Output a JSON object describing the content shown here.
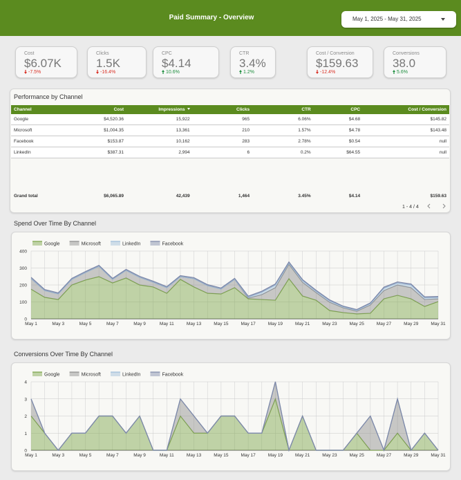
{
  "header": {
    "title": "Paid Summary - Overview",
    "date_range": "May 1, 2025 - May 31, 2025"
  },
  "kpis": [
    {
      "label": "Cost",
      "value": "$6.07K",
      "delta": "-7.5%",
      "direction": "down"
    },
    {
      "label": "Clicks",
      "value": "1.5K",
      "delta": "-16.4%",
      "direction": "down"
    },
    {
      "label": "CPC",
      "value": "$4.14",
      "delta": "10.6%",
      "direction": "up"
    },
    {
      "label": "CTR",
      "value": "3.4%",
      "delta": "1.2%",
      "direction": "up"
    },
    {
      "label": "Cost / Conversion",
      "value": "$159.63",
      "delta": "-12.4%",
      "direction": "down"
    },
    {
      "label": "Conversions",
      "value": "38.0",
      "delta": "5.6%",
      "direction": "up"
    }
  ],
  "table": {
    "title": "Performance by Channel",
    "columns": [
      "Channel",
      "Cost",
      "Impressions",
      "Clicks",
      "CTR",
      "CPC",
      "Cost / Conversion"
    ],
    "rows": [
      [
        "Google",
        "$4,520.36",
        "15,922",
        "965",
        "6.06%",
        "$4.68",
        "$145.82"
      ],
      [
        "Microsoft",
        "$1,004.35",
        "13,361",
        "210",
        "1.57%",
        "$4.78",
        "$143.48"
      ],
      [
        "Facebook",
        "$153.87",
        "10,162",
        "283",
        "2.78%",
        "$0.54",
        "null"
      ],
      [
        "LinkedIn",
        "$387.31",
        "2,994",
        "6",
        "0.2%",
        "$64.55",
        "null"
      ]
    ],
    "total": [
      "Grand total",
      "$6,065.89",
      "42,439",
      "1,464",
      "3.45%",
      "$4.14",
      "$159.63"
    ],
    "pagination": "1 - 4 / 4"
  },
  "chart_data": [
    {
      "type": "stacked-area",
      "title": "Spend Over Time By Channel",
      "categories": [
        "May 1",
        null,
        "May 3",
        null,
        "May 5",
        null,
        "May 7",
        null,
        "May 9",
        null,
        "May 11",
        null,
        "May 13",
        null,
        "May 15",
        null,
        "May 17",
        null,
        "May 19",
        null,
        "May 21",
        null,
        "May 23",
        null,
        "May 25",
        null,
        "May 27",
        null,
        "May 29",
        null,
        "May 31"
      ],
      "ylim": [
        0,
        400
      ],
      "yticks": [
        0,
        100,
        200,
        300,
        400
      ],
      "grid": true,
      "series": [
        {
          "name": "Google",
          "color": "#7aa346",
          "values": [
            175,
            127,
            114,
            200,
            229,
            249,
            212,
            241,
            200,
            188,
            151,
            233,
            188,
            151,
            147,
            184,
            118,
            114,
            110,
            237,
            135,
            110,
            49,
            37,
            29,
            33,
            118,
            139,
            118,
            73,
            102
          ]
        },
        {
          "name": "Microsoft",
          "color": "#8c8c8c",
          "values": [
            62,
            40,
            33,
            33,
            44,
            61,
            21,
            45,
            45,
            28,
            33,
            16,
            49,
            45,
            29,
            49,
            4,
            29,
            74,
            85,
            81,
            45,
            49,
            28,
            16,
            49,
            49,
            61,
            66,
            41,
            16
          ]
        },
        {
          "name": "LinkedIn",
          "color": "#9dbdda",
          "values": [
            0,
            0,
            0,
            0,
            0,
            0,
            0,
            0,
            0,
            0,
            0,
            0,
            0,
            0,
            0,
            0,
            6,
            14,
            16,
            8,
            10,
            8,
            8,
            6,
            6,
            8,
            14,
            12,
            16,
            10,
            8
          ]
        },
        {
          "name": "Facebook",
          "color": "#7d87a8",
          "values": [
            8,
            6,
            6,
            6,
            6,
            6,
            6,
            6,
            6,
            6,
            6,
            6,
            6,
            6,
            6,
            6,
            6,
            6,
            6,
            6,
            6,
            6,
            6,
            4,
            4,
            4,
            6,
            6,
            6,
            6,
            6
          ]
        }
      ]
    },
    {
      "type": "stacked-area",
      "title": "Conversions Over Time By Channel",
      "categories": [
        "May 1",
        null,
        "May 3",
        null,
        "May 5",
        null,
        "May 7",
        null,
        "May 9",
        null,
        "May 11",
        null,
        "May 13",
        null,
        "May 15",
        null,
        "May 17",
        null,
        "May 19",
        null,
        "May 21",
        null,
        "May 23",
        null,
        "May 25",
        null,
        "May 27",
        null,
        "May 29",
        null,
        "May 31"
      ],
      "ylim": [
        0,
        4
      ],
      "yticks": [
        0,
        1,
        2,
        3,
        4
      ],
      "grid": true,
      "series": [
        {
          "name": "Google",
          "color": "#7aa346",
          "values": [
            2,
            1,
            0,
            1,
            1,
            2,
            2,
            1,
            2,
            0,
            0,
            2,
            1,
            1,
            2,
            2,
            1,
            1,
            3,
            0,
            2,
            0,
            0,
            0,
            1,
            0,
            0,
            1,
            0,
            1,
            0
          ]
        },
        {
          "name": "Microsoft",
          "color": "#8c8c8c",
          "values": [
            1,
            0,
            0,
            0,
            0,
            0,
            0,
            0,
            0,
            0,
            0,
            1,
            1,
            0,
            0,
            0,
            0,
            0,
            1,
            0,
            0,
            0,
            0,
            0,
            0,
            2,
            0,
            2,
            0,
            0,
            0
          ]
        },
        {
          "name": "LinkedIn",
          "color": "#9dbdda",
          "values": [
            0,
            0,
            0,
            0,
            0,
            0,
            0,
            0,
            0,
            0,
            0,
            0,
            0,
            0,
            0,
            0,
            0,
            0,
            0,
            0,
            0,
            0,
            0,
            0,
            0,
            0,
            0,
            0,
            0,
            0,
            0
          ]
        },
        {
          "name": "Facebook",
          "color": "#7d87a8",
          "values": [
            0,
            0,
            0,
            0,
            0,
            0,
            0,
            0,
            0,
            0,
            0,
            0,
            0,
            0,
            0,
            0,
            0,
            0,
            0,
            0,
            0,
            0,
            0,
            0,
            0,
            0,
            0,
            0,
            0,
            0,
            0
          ]
        }
      ]
    }
  ]
}
